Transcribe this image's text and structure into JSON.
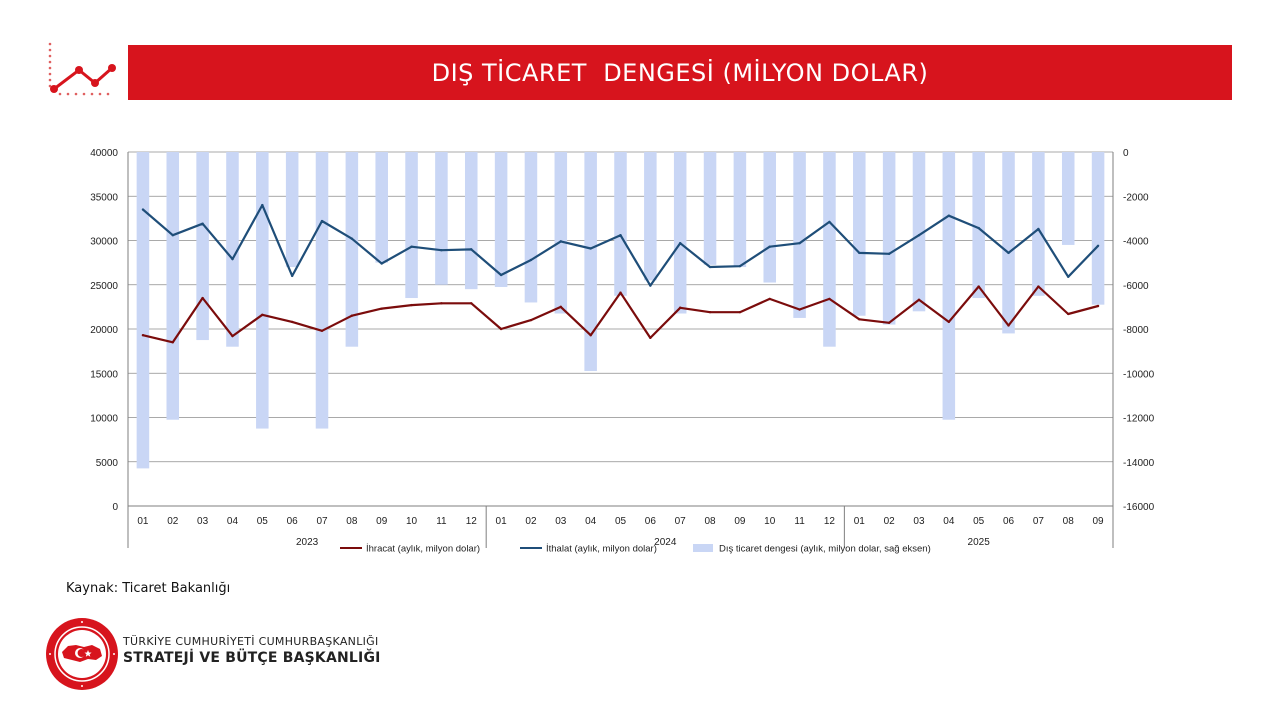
{
  "header": {
    "title": "DIŞ TİCARET  DENGESİ (MİLYON DOLAR)",
    "logo_icon": "line-chart-trend-icon"
  },
  "colors": {
    "brand_red": "#d7141d",
    "ihracat": "#7b0c0c",
    "ithalat": "#1f4e79",
    "denge_bar": "#c9d6f5"
  },
  "chart_data": {
    "type": "bar",
    "categories": [
      "01",
      "02",
      "03",
      "04",
      "05",
      "06",
      "07",
      "08",
      "09",
      "10",
      "11",
      "12",
      "01",
      "02",
      "03",
      "04",
      "05",
      "06",
      "07",
      "08",
      "09",
      "10",
      "11",
      "12",
      "01",
      "02",
      "03",
      "04",
      "05",
      "06",
      "07",
      "08",
      "09"
    ],
    "year_groups": [
      {
        "label": "2023",
        "count": 12
      },
      {
        "label": "2024",
        "count": 12
      },
      {
        "label": "2025",
        "count": 9
      }
    ],
    "series": [
      {
        "name": "İhracat (aylık, milyon dolar)",
        "type": "line",
        "axis": "left",
        "values": [
          19300,
          18500,
          23500,
          19200,
          21600,
          20800,
          19800,
          21500,
          22300,
          22700,
          22900,
          22900,
          20000,
          21000,
          22500,
          19300,
          24100,
          19000,
          22400,
          21900,
          21900,
          23400,
          22200,
          23400,
          21100,
          20700,
          23300,
          20800,
          24800,
          20400,
          24800,
          21700,
          22600
        ]
      },
      {
        "name": "İthalat (aylık, milyon dolar)",
        "type": "line",
        "axis": "left",
        "values": [
          33500,
          30600,
          31900,
          27900,
          34000,
          26000,
          32200,
          30200,
          27400,
          29300,
          28900,
          29000,
          26100,
          27800,
          29900,
          29100,
          30600,
          24900,
          29700,
          27000,
          27100,
          29300,
          29700,
          32100,
          28600,
          28500,
          30600,
          32800,
          31400,
          28600,
          31300,
          25900,
          29400
        ]
      },
      {
        "name": "Dış ticaret dengesi (aylık, milyon dolar, sağ eksen)",
        "type": "bar",
        "axis": "right",
        "values": [
          -14300,
          -12100,
          -8500,
          -8800,
          -12500,
          -5200,
          -12500,
          -8800,
          -5000,
          -6600,
          -6000,
          -6200,
          -6100,
          -6800,
          -7300,
          -9900,
          -6500,
          -5800,
          -7300,
          -5100,
          -5200,
          -5900,
          -7500,
          -8800,
          -7400,
          -7800,
          -7200,
          -12100,
          -6600,
          -8200,
          -6500,
          -4200,
          -6900
        ]
      }
    ],
    "left_axis": {
      "min": 0,
      "max": 40000,
      "step": 5000,
      "ticks": [
        "0",
        "5000",
        "10000",
        "15000",
        "20000",
        "25000",
        "30000",
        "35000",
        "40000"
      ]
    },
    "right_axis": {
      "min": -16000,
      "max": 0,
      "step": 2000,
      "ticks": [
        "-16000",
        "-14000",
        "-12000",
        "-10000",
        "-8000",
        "-6000",
        "-4000",
        "-2000",
        "0"
      ]
    },
    "grid": true,
    "legend_position": "bottom"
  },
  "footer": {
    "source": "Kaynak: Ticaret Bakanlığı",
    "org_line1": "TÜRKİYE CUMHURİYETİ CUMHURBAŞKANLIĞI",
    "org_line2": "STRATEJİ VE BÜTÇE BAŞKANLIĞI",
    "seal_icon": "institution-seal-icon"
  }
}
